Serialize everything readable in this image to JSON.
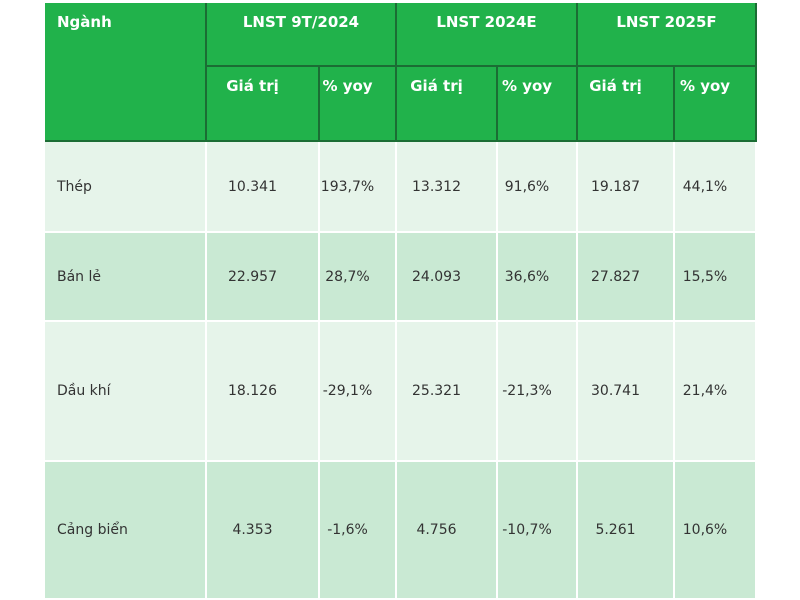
{
  "header": {
    "first": "Ngành",
    "groups": [
      "LNST 9T/2024",
      "LNST 2024E",
      "LNST 2025F"
    ],
    "sub": [
      "Giá trị",
      "% yoy",
      "Giá trị",
      "% yoy",
      "Giá trị",
      "% yoy"
    ]
  },
  "table": {
    "rows": [
      [
        "Thép",
        "10.341",
        "193,7%",
        "13.312",
        "91,6%",
        "19.187",
        "44,1%"
      ],
      [
        "Bán lẻ",
        "22.957",
        "28,7%",
        "24.093",
        "36,6%",
        "27.827",
        "15,5%"
      ],
      [
        "Dầu khí",
        "18.126",
        "-29,1%",
        "25.321",
        "-21,3%",
        "30.741",
        "21,4%"
      ],
      [
        "Cảng biển",
        "4.353",
        "-1,6%",
        "4.756",
        "-10,7%",
        "5.261",
        "10,6%"
      ]
    ]
  }
}
